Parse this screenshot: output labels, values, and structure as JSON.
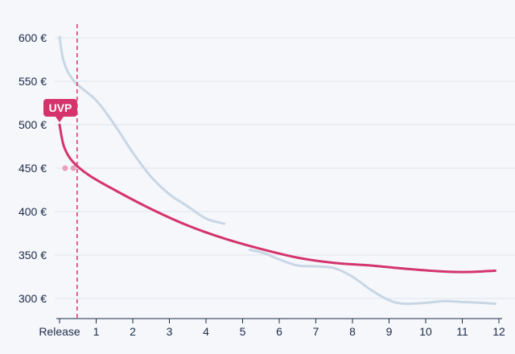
{
  "chart_data": {
    "type": "line",
    "ylim": [
      295,
      620
    ],
    "xlim": [
      0,
      12
    ],
    "yticks": [
      {
        "value": 600,
        "label": "600 €"
      },
      {
        "value": 550,
        "label": "550 €"
      },
      {
        "value": 500,
        "label": "500 €"
      },
      {
        "value": 450,
        "label": "450 €"
      },
      {
        "value": 400,
        "label": "400 €"
      },
      {
        "value": 350,
        "label": "350 €"
      },
      {
        "value": 300,
        "label": "300 €"
      }
    ],
    "xticks": [
      {
        "value": 0,
        "label": "Release"
      },
      {
        "value": 1,
        "label": "1"
      },
      {
        "value": 2,
        "label": "2"
      },
      {
        "value": 3,
        "label": "3"
      },
      {
        "value": 4,
        "label": "4"
      },
      {
        "value": 5,
        "label": "5"
      },
      {
        "value": 6,
        "label": "6"
      },
      {
        "value": 7,
        "label": "7"
      },
      {
        "value": 8,
        "label": "8"
      },
      {
        "value": 9,
        "label": "9"
      },
      {
        "value": 10,
        "label": "10"
      },
      {
        "value": 11,
        "label": "11"
      },
      {
        "value": 12,
        "label": "12"
      }
    ],
    "marker_x": 0.48,
    "uvp_label": "UVP",
    "uvp_value": 500,
    "series": [
      {
        "color": "#d4346b",
        "width": 3,
        "points": [
          [
            0,
            500
          ],
          [
            0.12,
            475
          ],
          [
            0.35,
            458
          ],
          [
            0.8,
            442
          ],
          [
            1.5,
            425
          ],
          [
            2.5,
            403
          ],
          [
            3.5,
            384
          ],
          [
            4.5,
            369
          ],
          [
            5.5,
            357
          ],
          [
            6.5,
            347
          ],
          [
            7.5,
            341
          ],
          [
            8.5,
            338
          ],
          [
            9.5,
            334
          ],
          [
            10.5,
            331
          ],
          [
            11.2,
            330.5
          ],
          [
            11.9,
            332
          ]
        ]
      },
      {
        "color": "#c8d6e5",
        "width": 3,
        "points": [
          [
            0,
            601
          ],
          [
            0.12,
            572
          ],
          [
            0.4,
            550
          ],
          [
            1,
            528
          ],
          [
            1.5,
            500
          ],
          [
            2,
            468
          ],
          [
            2.5,
            440
          ],
          [
            3,
            420
          ],
          [
            3.5,
            406
          ],
          [
            4,
            392
          ],
          [
            4.5,
            386
          ]
        ]
      },
      {
        "color": "#c8d6e5",
        "width": 3,
        "points": [
          [
            5.2,
            356
          ],
          [
            5.6,
            352
          ],
          [
            6,
            345
          ],
          [
            6.5,
            338
          ],
          [
            7,
            337
          ],
          [
            7.5,
            335
          ],
          [
            8,
            325
          ],
          [
            8.5,
            310
          ],
          [
            9,
            298
          ],
          [
            9.4,
            294
          ],
          [
            10,
            295
          ],
          [
            10.5,
            297
          ],
          [
            11,
            296
          ],
          [
            11.5,
            295
          ],
          [
            11.9,
            294
          ]
        ]
      }
    ],
    "dots": [
      {
        "x": 0.15,
        "y": 450,
        "color": "#eaa0b9"
      },
      {
        "x": 0.38,
        "y": 450,
        "color": "#eaa0b9"
      }
    ]
  }
}
